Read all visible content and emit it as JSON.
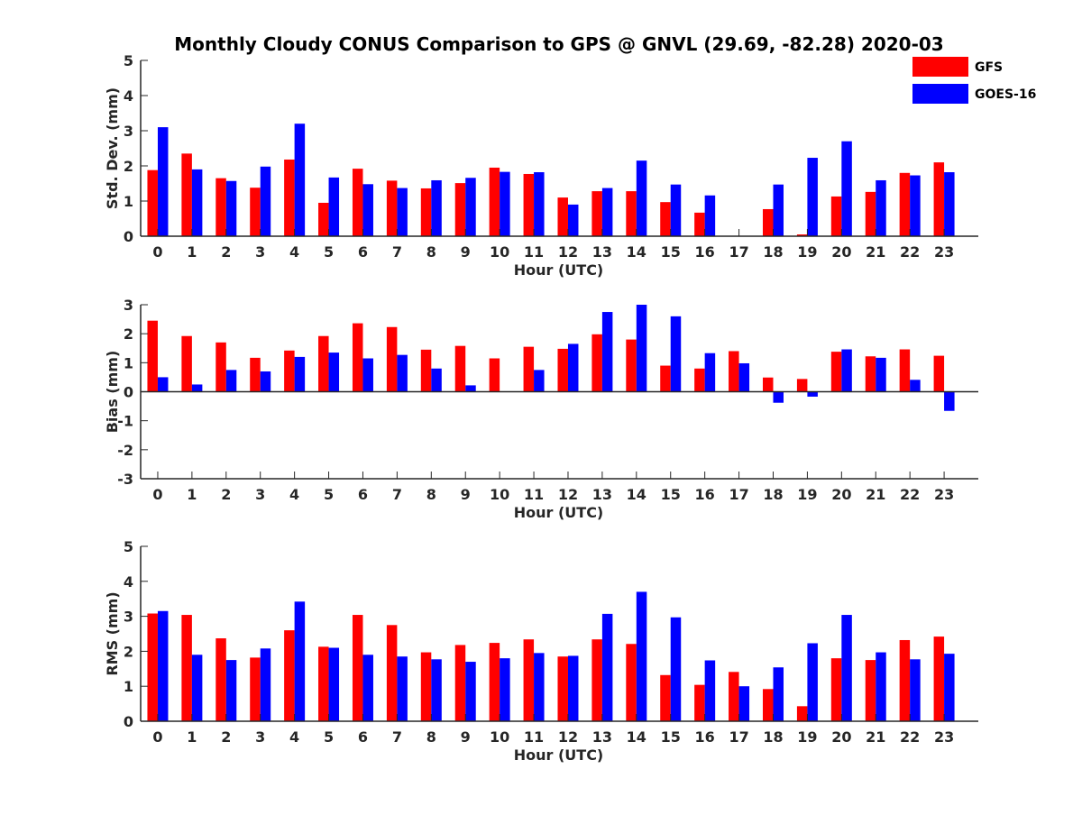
{
  "title": "Monthly Cloudy CONUS Comparison to GPS @ GNVL (29.69, -82.28) 2020-03",
  "legend": [
    {
      "name": "GFS",
      "color": "#ff0000"
    },
    {
      "name": "GOES-16",
      "color": "#0000ff"
    }
  ],
  "chart_data": [
    {
      "type": "bar",
      "xlabel": "Hour (UTC)",
      "ylabel": "Std. Dev. (mm)",
      "categories": [
        "0",
        "1",
        "2",
        "3",
        "4",
        "5",
        "6",
        "7",
        "8",
        "9",
        "10",
        "11",
        "12",
        "13",
        "14",
        "15",
        "16",
        "17",
        "18",
        "19",
        "20",
        "21",
        "22",
        "23"
      ],
      "ylim": [
        0,
        5
      ],
      "yticks": [
        0,
        1,
        2,
        3,
        4,
        5
      ],
      "series": [
        {
          "name": "GFS",
          "color": "#ff0000",
          "values": [
            1.88,
            2.35,
            1.65,
            1.38,
            2.18,
            0.95,
            1.92,
            1.58,
            1.36,
            1.51,
            1.95,
            1.77,
            1.1,
            1.28,
            1.28,
            0.97,
            0.67,
            0,
            0.77,
            0.05,
            1.13,
            1.26,
            1.8,
            2.1
          ]
        },
        {
          "name": "GOES-16",
          "color": "#0000ff",
          "values": [
            3.1,
            1.9,
            1.57,
            1.98,
            3.2,
            1.67,
            1.48,
            1.37,
            1.59,
            1.66,
            1.83,
            1.82,
            0.9,
            1.37,
            2.15,
            1.47,
            1.16,
            0,
            1.47,
            2.23,
            2.7,
            1.59,
            1.73,
            1.82
          ]
        }
      ]
    },
    {
      "type": "bar",
      "xlabel": "Hour (UTC)",
      "ylabel": "Bias (mm)",
      "categories": [
        "0",
        "1",
        "2",
        "3",
        "4",
        "5",
        "6",
        "7",
        "8",
        "9",
        "10",
        "11",
        "12",
        "13",
        "14",
        "15",
        "16",
        "17",
        "18",
        "19",
        "20",
        "21",
        "22",
        "23"
      ],
      "ylim": [
        -3,
        3
      ],
      "yticks": [
        -3,
        -2,
        -1,
        0,
        1,
        2,
        3
      ],
      "series": [
        {
          "name": "GFS",
          "color": "#ff0000",
          "values": [
            2.45,
            1.92,
            1.7,
            1.17,
            1.42,
            1.92,
            2.36,
            2.23,
            1.45,
            1.58,
            1.15,
            1.55,
            1.48,
            1.98,
            1.8,
            0.9,
            0.8,
            1.4,
            0.49,
            0.44,
            1.38,
            1.22,
            1.46,
            1.24
          ]
        },
        {
          "name": "GOES-16",
          "color": "#0000ff",
          "values": [
            0.5,
            0.25,
            0.75,
            0.7,
            1.2,
            1.35,
            1.15,
            1.27,
            0.8,
            0.22,
            0,
            0.75,
            1.65,
            2.75,
            3.0,
            2.6,
            1.33,
            0.98,
            -0.38,
            -0.17,
            1.46,
            1.17,
            0.41,
            -0.66
          ]
        }
      ]
    },
    {
      "type": "bar",
      "xlabel": "Hour (UTC)",
      "ylabel": "RMS (mm)",
      "categories": [
        "0",
        "1",
        "2",
        "3",
        "4",
        "5",
        "6",
        "7",
        "8",
        "9",
        "10",
        "11",
        "12",
        "13",
        "14",
        "15",
        "16",
        "17",
        "18",
        "19",
        "20",
        "21",
        "22",
        "23"
      ],
      "ylim": [
        0,
        5
      ],
      "yticks": [
        0,
        1,
        2,
        3,
        4,
        5
      ],
      "series": [
        {
          "name": "GFS",
          "color": "#ff0000",
          "values": [
            3.08,
            3.04,
            2.37,
            1.82,
            2.6,
            2.13,
            3.04,
            2.75,
            1.97,
            2.18,
            2.24,
            2.34,
            1.85,
            2.34,
            2.21,
            1.32,
            1.04,
            1.41,
            0.92,
            0.43,
            1.8,
            1.75,
            2.32,
            2.42
          ]
        },
        {
          "name": "GOES-16",
          "color": "#0000ff",
          "values": [
            3.15,
            1.9,
            1.75,
            2.08,
            3.42,
            2.1,
            1.9,
            1.85,
            1.77,
            1.7,
            1.8,
            1.95,
            1.87,
            3.07,
            3.7,
            2.97,
            1.74,
            1.0,
            1.54,
            2.23,
            3.04,
            1.97,
            1.77,
            1.93
          ]
        }
      ]
    }
  ]
}
